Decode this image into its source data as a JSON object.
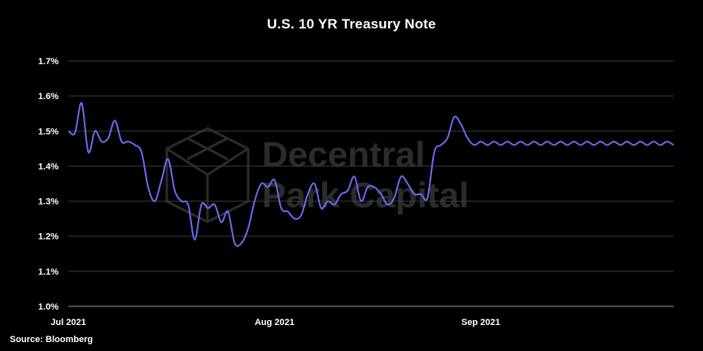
{
  "chart_data": {
    "type": "line",
    "title": "U.S. 10 YR Treasury Note",
    "source": "Source: Bloomberg",
    "watermark": [
      "Decentral",
      "Park Capital"
    ],
    "xlabel": "",
    "ylabel": "",
    "ylim": [
      1.0,
      1.7
    ],
    "yticks": [
      "1.0%",
      "1.1%",
      "1.2%",
      "1.3%",
      "1.4%",
      "1.5%",
      "1.6%",
      "1.7%"
    ],
    "xticks": [
      {
        "label": "Jul 2021",
        "date": "2021-07-01"
      },
      {
        "label": "Aug 2021",
        "date": "2021-08-01"
      },
      {
        "label": "Sep 2021",
        "date": "2021-09-01"
      }
    ],
    "grid": true,
    "line_color": "#6b6bf0",
    "series": [
      {
        "x": [
          "2021-07-01",
          "2021-07-02",
          "2021-07-03",
          "2021-07-04",
          "2021-07-05",
          "2021-07-06",
          "2021-07-07",
          "2021-07-08",
          "2021-07-09",
          "2021-07-10",
          "2021-07-11",
          "2021-07-12",
          "2021-07-13",
          "2021-07-14",
          "2021-07-15",
          "2021-07-16",
          "2021-07-17",
          "2021-07-18",
          "2021-07-19",
          "2021-07-20",
          "2021-07-21",
          "2021-07-22",
          "2021-07-23",
          "2021-07-24",
          "2021-07-25",
          "2021-07-26",
          "2021-07-27",
          "2021-07-28",
          "2021-07-29",
          "2021-07-30",
          "2021-07-31",
          "2021-08-01",
          "2021-08-02",
          "2021-08-03",
          "2021-08-04",
          "2021-08-05",
          "2021-08-06",
          "2021-08-07",
          "2021-08-08",
          "2021-08-09",
          "2021-08-10",
          "2021-08-11",
          "2021-08-12",
          "2021-08-13",
          "2021-08-14",
          "2021-08-15",
          "2021-08-16",
          "2021-08-17",
          "2021-08-18",
          "2021-08-19",
          "2021-08-20",
          "2021-08-21",
          "2021-08-22",
          "2021-08-23",
          "2021-08-24",
          "2021-08-25",
          "2021-08-26",
          "2021-08-27",
          "2021-08-28",
          "2021-08-29",
          "2021-08-30",
          "2021-08-31",
          "2021-09-01",
          "2021-09-02",
          "2021-09-03",
          "2021-09-04",
          "2021-09-05",
          "2021-09-06",
          "2021-09-07",
          "2021-09-08",
          "2021-09-09",
          "2021-09-10",
          "2021-09-11",
          "2021-09-12",
          "2021-09-13",
          "2021-09-14",
          "2021-09-15",
          "2021-09-16",
          "2021-09-17",
          "2021-09-18",
          "2021-09-19",
          "2021-09-20",
          "2021-09-21",
          "2021-09-22",
          "2021-09-23",
          "2021-09-24",
          "2021-09-25",
          "2021-09-26",
          "2021-09-27",
          "2021-09-28",
          "2021-09-29",
          "2021-09-30"
        ],
        "values": [
          1.5,
          1.495,
          1.58,
          1.44,
          1.5,
          1.47,
          1.48,
          1.53,
          1.47,
          1.47,
          1.46,
          1.44,
          1.34,
          1.3,
          1.36,
          1.42,
          1.33,
          1.3,
          1.29,
          1.19,
          1.29,
          1.28,
          1.29,
          1.24,
          1.27,
          1.18,
          1.18,
          1.22,
          1.3,
          1.35,
          1.34,
          1.36,
          1.28,
          1.27,
          1.25,
          1.26,
          1.32,
          1.35,
          1.28,
          1.3,
          1.29,
          1.32,
          1.33,
          1.37,
          1.3,
          1.34,
          1.34,
          1.32,
          1.29,
          1.31,
          1.37,
          1.35,
          1.32,
          1.32,
          1.31,
          1.44,
          1.46,
          1.48,
          1.54,
          1.52,
          1.48,
          1.46,
          1.47,
          1.46,
          1.47,
          1.46,
          1.47,
          1.46,
          1.47,
          1.46,
          1.47,
          1.46,
          1.47,
          1.46,
          1.47,
          1.46,
          1.47,
          1.46,
          1.47,
          1.46,
          1.47,
          1.46,
          1.47,
          1.46,
          1.47,
          1.46,
          1.47,
          1.46,
          1.47,
          1.46,
          1.47,
          1.46
        ]
      }
    ]
  }
}
